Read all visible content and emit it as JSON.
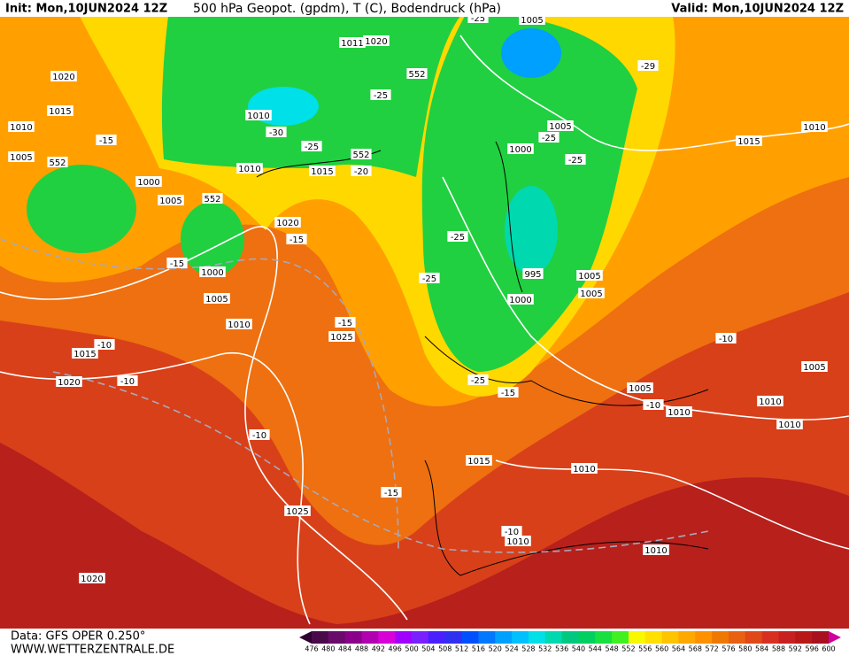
{
  "header": {
    "init": "Init: Mon,10JUN2024 12Z",
    "title": "500 hPa Geopot. (gpdm), T (C), Bodendruck (hPa)",
    "valid": "Valid: Mon,10JUN2024 12Z"
  },
  "footer": {
    "data": "Data: GFS OPER 0.250°",
    "site": "WWW.WETTERZENTRALE.DE"
  },
  "map_labels": [
    "1020",
    "1015",
    "1010",
    "1005",
    "552",
    "1000",
    "1005",
    "552",
    "1000",
    "1005",
    "1010",
    "-15",
    "-15",
    "1010",
    "-30",
    "-25",
    "1010",
    "1015",
    "552",
    "-20",
    "1020",
    "-15",
    "1011",
    "1020",
    "552",
    "-25",
    "1005",
    "-25",
    "-29",
    "1005",
    "-25",
    "1000",
    "-25",
    "1015",
    "1010",
    "-25",
    "-25",
    "995",
    "1005",
    "1005",
    "1000",
    "-15",
    "1025",
    "1015",
    "-10",
    "1020",
    "-10",
    "-25",
    "-15",
    "1005",
    "-10",
    "1010",
    "1010",
    "1010",
    "-10",
    "1005",
    "-10",
    "1015",
    "1010",
    "-15",
    "1025",
    "-10",
    "1010",
    "1010",
    "1020"
  ],
  "colorbar": {
    "ticks": [
      476,
      480,
      484,
      488,
      492,
      496,
      500,
      504,
      508,
      512,
      516,
      520,
      524,
      528,
      532,
      536,
      540,
      544,
      548,
      552,
      556,
      560,
      564,
      568,
      572,
      576,
      580,
      584,
      588,
      592,
      596,
      600
    ],
    "colors": [
      "#4a0a4a",
      "#6a0a6a",
      "#8a008a",
      "#b000b0",
      "#d800d8",
      "#a000ff",
      "#7a20ff",
      "#4a20ff",
      "#3030f0",
      "#0050ff",
      "#0078ff",
      "#00a0ff",
      "#00c0ff",
      "#00e0e8",
      "#00d8b0",
      "#00c880",
      "#00d060",
      "#18e040",
      "#40f020",
      "#f8f800",
      "#ffe000",
      "#ffc400",
      "#ffa800",
      "#ff9000",
      "#f07800",
      "#e86010",
      "#e04818",
      "#d83020",
      "#c82020",
      "#b81818",
      "#a81020"
    ],
    "low_color": "#300030",
    "high_color": "#d000a0"
  }
}
